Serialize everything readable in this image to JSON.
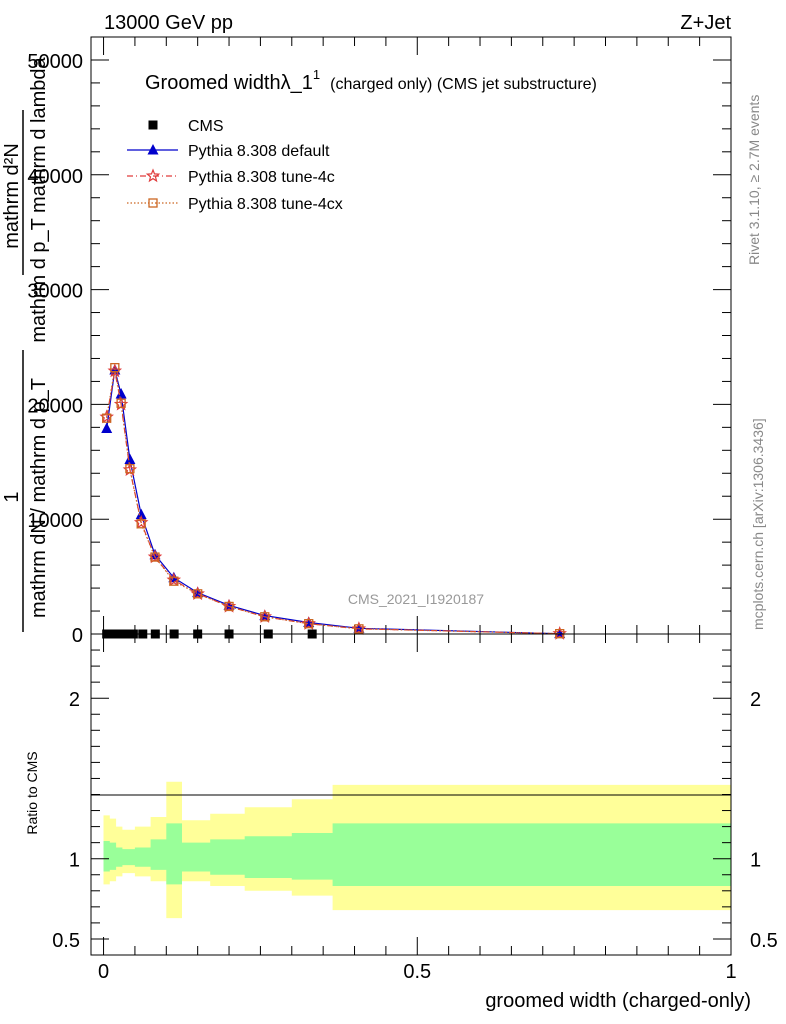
{
  "header": {
    "left": "13000 GeV pp",
    "right": "Z+Jet"
  },
  "side": {
    "rivet": "Rivet 3.1.10, ≥ 2.7M events",
    "mcplots": "mcplots.cern.ch [arXiv:1306.3436]"
  },
  "watermark": "CMS_2021_I1920187",
  "plot_title": {
    "main": "Groomed widthλ_1",
    "sup": "1",
    "sub": "(charged only) (CMS jet substructure)"
  },
  "ylabel_top": {
    "num_line1": "mathrm d²N",
    "den_line1": "mathrm d p_T mathrm d lambda",
    "frac_one": "1",
    "den_line2": "mathrm dN / mathrm d p_T"
  },
  "ylabel_bottom": "Ratio to CMS",
  "xlabel": "groomed width (charged-only)",
  "chart_data": [
    {
      "type": "line",
      "panel": "main",
      "x_tick_labels": [
        "0",
        "0.5",
        "1"
      ],
      "y_tick_labels": [
        "0",
        "10000",
        "20000",
        "30000",
        "40000",
        "50000"
      ],
      "xlim": [
        -0.02,
        1.0
      ],
      "ylim": [
        0,
        52000
      ],
      "legend_position": "top-left",
      "series": [
        {
          "name": "CMS",
          "color": "#000000",
          "marker": "square",
          "x": [
            0.005,
            0.015,
            0.025,
            0.035,
            0.0475,
            0.0625,
            0.0825,
            0.1125,
            0.15,
            0.2,
            0.2625,
            0.3325
          ],
          "y": [
            0,
            0,
            0,
            0,
            0,
            0,
            0,
            0,
            0,
            0,
            0,
            0
          ]
        },
        {
          "name": "Pythia 8.308 default",
          "color": "#0000cc",
          "marker": "triangle",
          "x": [
            0.005,
            0.018,
            0.028,
            0.042,
            0.06,
            0.082,
            0.112,
            0.15,
            0.2,
            0.257,
            0.327,
            0.407,
            0.727
          ],
          "y": [
            17900,
            23000,
            20900,
            15200,
            10400,
            6900,
            4900,
            3600,
            2500,
            1600,
            1000,
            500,
            30
          ]
        },
        {
          "name": "Pythia 8.308 tune-4c",
          "color": "#e03c3c",
          "marker": "star",
          "x": [
            0.005,
            0.018,
            0.028,
            0.042,
            0.06,
            0.082,
            0.112,
            0.15,
            0.2,
            0.257,
            0.327,
            0.407,
            0.727
          ],
          "y": [
            18900,
            22900,
            20000,
            14300,
            9700,
            6700,
            4700,
            3500,
            2400,
            1500,
            900,
            450,
            30
          ]
        },
        {
          "name": "Pythia 8.308 tune-4cx",
          "color": "#cc6622",
          "marker": "open-square",
          "x": [
            0.005,
            0.018,
            0.028,
            0.042,
            0.06,
            0.082,
            0.112,
            0.15,
            0.2,
            0.257,
            0.327,
            0.407,
            0.727
          ],
          "y": [
            18800,
            23200,
            20100,
            14400,
            9600,
            6700,
            4600,
            3500,
            2400,
            1500,
            900,
            450,
            30
          ]
        }
      ]
    },
    {
      "type": "area",
      "panel": "ratio",
      "x_tick_labels": [
        "0",
        "0.5",
        "1"
      ],
      "y_tick_labels": [
        "0.5",
        "1",
        "2"
      ],
      "xlim": [
        -0.02,
        1.0
      ],
      "ylim": [
        0.4,
        2.4
      ],
      "reference_line": 1,
      "bin_edges": [
        0,
        0.01,
        0.02,
        0.03,
        0.05,
        0.075,
        0.1,
        0.125,
        0.17,
        0.225,
        0.3,
        0.365,
        0.45,
        1.0
      ],
      "band_total": {
        "name": "total uncertainty",
        "color": "#ffff99",
        "lo": [
          0.84,
          0.86,
          0.89,
          0.91,
          0.89,
          0.86,
          0.63,
          0.86,
          0.83,
          0.8,
          0.77,
          0.68,
          0.68
        ],
        "hi": [
          1.27,
          1.25,
          1.2,
          1.18,
          1.2,
          1.26,
          1.48,
          1.24,
          1.28,
          1.32,
          1.37,
          1.46,
          1.46
        ]
      },
      "band_stat": {
        "name": "statistical uncertainty",
        "color": "#99ff99",
        "lo": [
          0.92,
          0.93,
          0.95,
          0.96,
          0.95,
          0.93,
          0.84,
          0.92,
          0.9,
          0.88,
          0.87,
          0.83,
          0.83
        ],
        "hi": [
          1.11,
          1.1,
          1.07,
          1.06,
          1.07,
          1.12,
          1.22,
          1.1,
          1.12,
          1.14,
          1.16,
          1.22,
          1.22
        ]
      }
    }
  ]
}
